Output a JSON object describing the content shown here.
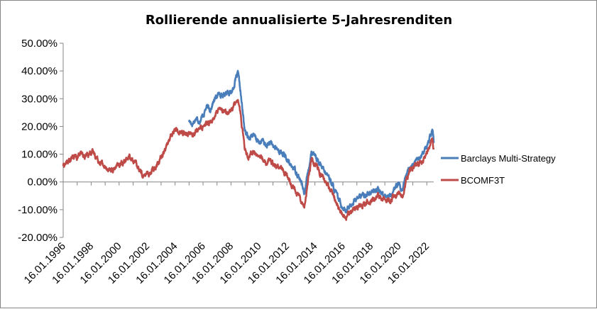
{
  "chart_data": {
    "type": "line",
    "title": "Rollierende annualisierte 5-Jahresrenditen",
    "xlabel": "",
    "ylabel": "",
    "ylim": [
      -20,
      50
    ],
    "y_ticks": [
      50,
      40,
      30,
      20,
      10,
      0,
      -10,
      -20
    ],
    "y_tick_labels": [
      "50.00%",
      "40.00%",
      "30.00%",
      "20.00%",
      "10.00%",
      "0.00%",
      "-10.00%",
      "-20.00%"
    ],
    "x_range": [
      "1996-01-16",
      "2022-07-16"
    ],
    "x_tick_labels": [
      "16.01.1996",
      "16.01.1998",
      "16.01.2000",
      "16.01.2002",
      "16.01.2004",
      "16.01.2006",
      "16.01.2008",
      "16.01.2010",
      "16.01.2012",
      "16.01.2014",
      "16.01.2016",
      "16.01.2018",
      "16.01.2020",
      "16.01.2022"
    ],
    "grid": false,
    "legend_position": "right",
    "series": [
      {
        "name": "Barclays Multi-Strategy",
        "color": "#4a7ebb",
        "points": [
          [
            "2005-01-16",
            22
          ],
          [
            "2005-04-16",
            21
          ],
          [
            "2005-07-16",
            23
          ],
          [
            "2005-10-16",
            22
          ],
          [
            "2006-01-16",
            24
          ],
          [
            "2006-04-16",
            27
          ],
          [
            "2006-07-16",
            26
          ],
          [
            "2006-10-16",
            29
          ],
          [
            "2007-01-16",
            31
          ],
          [
            "2007-04-16",
            32
          ],
          [
            "2007-07-16",
            31
          ],
          [
            "2007-10-16",
            33
          ],
          [
            "2008-01-16",
            32
          ],
          [
            "2008-03-16",
            34
          ],
          [
            "2008-05-16",
            37
          ],
          [
            "2008-07-16",
            39
          ],
          [
            "2008-09-16",
            33
          ],
          [
            "2008-11-16",
            25
          ],
          [
            "2009-01-16",
            18
          ],
          [
            "2009-04-16",
            16
          ],
          [
            "2009-07-16",
            17
          ],
          [
            "2009-10-16",
            16
          ],
          [
            "2010-01-16",
            14
          ],
          [
            "2010-04-16",
            15
          ],
          [
            "2010-07-16",
            13
          ],
          [
            "2010-10-16",
            14
          ],
          [
            "2011-01-16",
            13
          ],
          [
            "2011-04-16",
            12
          ],
          [
            "2011-07-16",
            11
          ],
          [
            "2011-10-16",
            10
          ],
          [
            "2012-01-16",
            8
          ],
          [
            "2012-04-16",
            6
          ],
          [
            "2012-07-16",
            5
          ],
          [
            "2012-10-16",
            3
          ],
          [
            "2013-01-16",
            0
          ],
          [
            "2013-04-16",
            -4
          ],
          [
            "2013-07-16",
            3
          ],
          [
            "2013-10-16",
            11
          ],
          [
            "2014-01-16",
            10
          ],
          [
            "2014-04-16",
            7
          ],
          [
            "2014-07-16",
            5
          ],
          [
            "2014-10-16",
            3
          ],
          [
            "2015-01-16",
            2
          ],
          [
            "2015-04-16",
            -1
          ],
          [
            "2015-07-16",
            -4
          ],
          [
            "2015-10-16",
            -7
          ],
          [
            "2016-01-16",
            -9
          ],
          [
            "2016-04-16",
            -10
          ],
          [
            "2016-07-16",
            -9
          ],
          [
            "2016-10-16",
            -7
          ],
          [
            "2017-01-16",
            -6
          ],
          [
            "2017-04-16",
            -5
          ],
          [
            "2017-07-16",
            -5
          ],
          [
            "2017-10-16",
            -4
          ],
          [
            "2018-01-16",
            -4
          ],
          [
            "2018-04-16",
            -3
          ],
          [
            "2018-07-16",
            -3
          ],
          [
            "2018-10-16",
            -4
          ],
          [
            "2019-01-16",
            -5
          ],
          [
            "2019-04-16",
            -5
          ],
          [
            "2019-07-16",
            -4
          ],
          [
            "2019-10-16",
            -2
          ],
          [
            "2020-01-16",
            -1
          ],
          [
            "2020-04-16",
            -3
          ],
          [
            "2020-07-16",
            2
          ],
          [
            "2020-10-16",
            5
          ],
          [
            "2021-01-16",
            6
          ],
          [
            "2021-04-16",
            7
          ],
          [
            "2021-07-16",
            9
          ],
          [
            "2021-10-16",
            10
          ],
          [
            "2022-01-16",
            13
          ],
          [
            "2022-04-16",
            17
          ],
          [
            "2022-06-16",
            19
          ],
          [
            "2022-07-16",
            14
          ]
        ]
      },
      {
        "name": "BCOMF3T",
        "color": "#be4b48",
        "points": [
          [
            "1996-01-16",
            6
          ],
          [
            "1996-04-16",
            7
          ],
          [
            "1996-07-16",
            8
          ],
          [
            "1996-10-16",
            9
          ],
          [
            "1997-01-16",
            9
          ],
          [
            "1997-04-16",
            10
          ],
          [
            "1997-07-16",
            9
          ],
          [
            "1997-10-16",
            10
          ],
          [
            "1998-01-16",
            11
          ],
          [
            "1998-04-16",
            10
          ],
          [
            "1998-07-16",
            8
          ],
          [
            "1998-10-16",
            7
          ],
          [
            "1999-01-16",
            5
          ],
          [
            "1999-04-16",
            5
          ],
          [
            "1999-07-16",
            4
          ],
          [
            "1999-10-16",
            5
          ],
          [
            "2000-01-16",
            6
          ],
          [
            "2000-04-16",
            7
          ],
          [
            "2000-07-16",
            8
          ],
          [
            "2000-10-16",
            9
          ],
          [
            "2001-01-16",
            8
          ],
          [
            "2001-04-16",
            6
          ],
          [
            "2001-07-16",
            4
          ],
          [
            "2001-10-16",
            2
          ],
          [
            "2002-01-16",
            3
          ],
          [
            "2002-04-16",
            3
          ],
          [
            "2002-07-16",
            5
          ],
          [
            "2002-10-16",
            7
          ],
          [
            "2003-01-16",
            9
          ],
          [
            "2003-04-16",
            12
          ],
          [
            "2003-07-16",
            14
          ],
          [
            "2003-10-16",
            17
          ],
          [
            "2004-01-16",
            19
          ],
          [
            "2004-04-16",
            18
          ],
          [
            "2004-07-16",
            18
          ],
          [
            "2004-10-16",
            17
          ],
          [
            "2005-01-16",
            18
          ],
          [
            "2005-04-16",
            17
          ],
          [
            "2005-07-16",
            18
          ],
          [
            "2005-10-16",
            19
          ],
          [
            "2006-01-16",
            20
          ],
          [
            "2006-04-16",
            22
          ],
          [
            "2006-07-16",
            21
          ],
          [
            "2006-10-16",
            23
          ],
          [
            "2007-01-16",
            25
          ],
          [
            "2007-04-16",
            26
          ],
          [
            "2007-07-16",
            25
          ],
          [
            "2007-10-16",
            25
          ],
          [
            "2008-01-16",
            26
          ],
          [
            "2008-03-16",
            27
          ],
          [
            "2008-05-16",
            29
          ],
          [
            "2008-07-16",
            30
          ],
          [
            "2008-09-16",
            25
          ],
          [
            "2008-11-16",
            18
          ],
          [
            "2009-01-16",
            12
          ],
          [
            "2009-04-16",
            9
          ],
          [
            "2009-07-16",
            11
          ],
          [
            "2009-10-16",
            10
          ],
          [
            "2010-01-16",
            9
          ],
          [
            "2010-04-16",
            9
          ],
          [
            "2010-07-16",
            7
          ],
          [
            "2010-10-16",
            8
          ],
          [
            "2011-01-16",
            7
          ],
          [
            "2011-04-16",
            6
          ],
          [
            "2011-07-16",
            5
          ],
          [
            "2011-10-16",
            4
          ],
          [
            "2012-01-16",
            2
          ],
          [
            "2012-04-16",
            0
          ],
          [
            "2012-07-16",
            -2
          ],
          [
            "2012-10-16",
            -4
          ],
          [
            "2013-01-16",
            -6
          ],
          [
            "2013-04-16",
            -9
          ],
          [
            "2013-07-16",
            0
          ],
          [
            "2013-10-16",
            8
          ],
          [
            "2014-01-16",
            7
          ],
          [
            "2014-04-16",
            4
          ],
          [
            "2014-07-16",
            2
          ],
          [
            "2014-10-16",
            0
          ],
          [
            "2015-01-16",
            -2
          ],
          [
            "2015-04-16",
            -4
          ],
          [
            "2015-07-16",
            -7
          ],
          [
            "2015-10-16",
            -10
          ],
          [
            "2016-01-16",
            -12
          ],
          [
            "2016-04-16",
            -13
          ],
          [
            "2016-07-16",
            -11
          ],
          [
            "2016-10-16",
            -10
          ],
          [
            "2017-01-16",
            -9
          ],
          [
            "2017-04-16",
            -8
          ],
          [
            "2017-07-16",
            -8
          ],
          [
            "2017-10-16",
            -7
          ],
          [
            "2018-01-16",
            -7
          ],
          [
            "2018-04-16",
            -6
          ],
          [
            "2018-07-16",
            -5
          ],
          [
            "2018-10-16",
            -6
          ],
          [
            "2019-01-16",
            -6
          ],
          [
            "2019-04-16",
            -7
          ],
          [
            "2019-07-16",
            -6
          ],
          [
            "2019-10-16",
            -5
          ],
          [
            "2020-01-16",
            -4
          ],
          [
            "2020-04-16",
            -6
          ],
          [
            "2020-07-16",
            0
          ],
          [
            "2020-10-16",
            4
          ],
          [
            "2021-01-16",
            5
          ],
          [
            "2021-04-16",
            6
          ],
          [
            "2021-07-16",
            7
          ],
          [
            "2021-10-16",
            8
          ],
          [
            "2022-01-16",
            10
          ],
          [
            "2022-04-16",
            13
          ],
          [
            "2022-06-16",
            15
          ],
          [
            "2022-07-16",
            11
          ]
        ]
      }
    ]
  }
}
